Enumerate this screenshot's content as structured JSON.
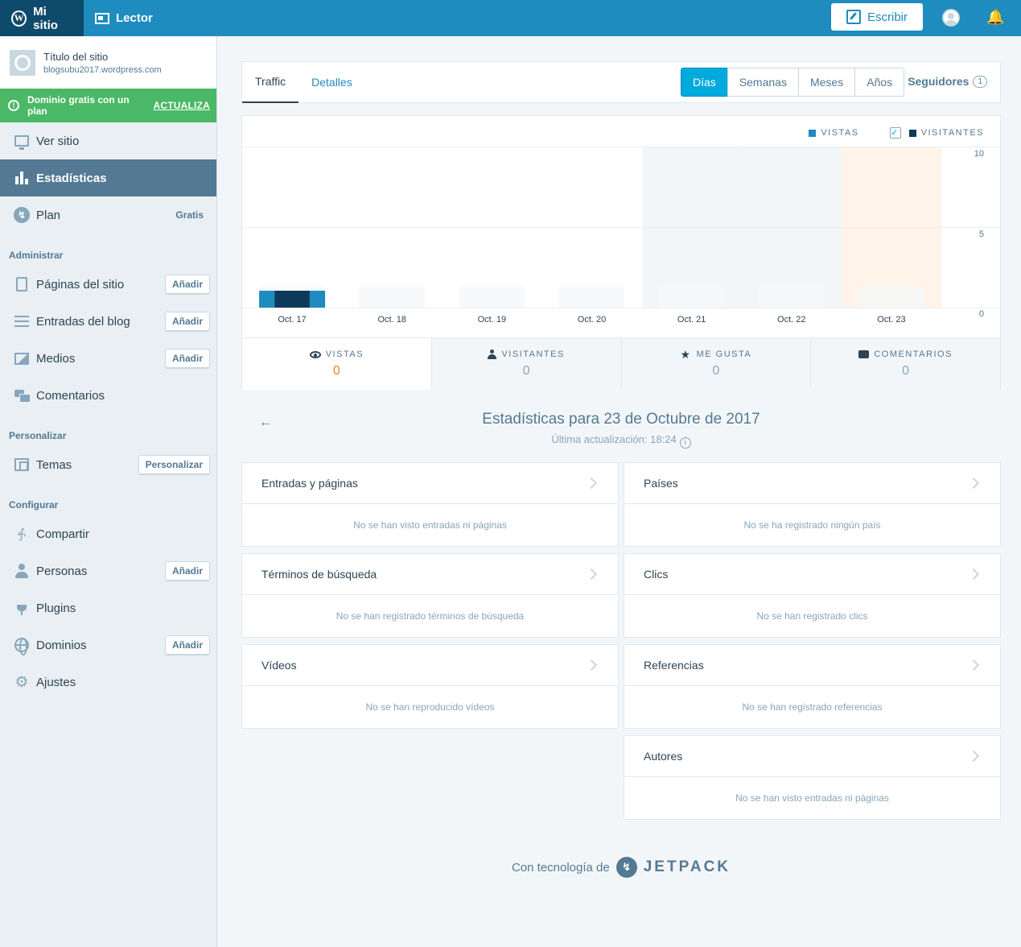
{
  "masterbar": {
    "my_sites": "Mi sitio",
    "reader": "Lector",
    "write": "Escribir"
  },
  "site": {
    "title": "Título del sitio",
    "domain": "blogsubu2017.wordpress.com"
  },
  "upsell": {
    "text": "Dominio gratis con un plan",
    "cta": "ACTUALIZA"
  },
  "sidebar": {
    "view_site": "Ver sitio",
    "stats": "Estadísticas",
    "plan": "Plan",
    "plan_badge": "Gratis",
    "section_manage": "Administrar",
    "pages": "Páginas del sitio",
    "pages_btn": "Añadir",
    "posts": "Entradas del blog",
    "posts_btn": "Añadir",
    "media": "Medios",
    "media_btn": "Añadir",
    "comments": "Comentarios",
    "section_personalize": "Personalizar",
    "themes": "Temas",
    "themes_btn": "Personalizar",
    "section_configure": "Configurar",
    "sharing": "Compartir",
    "people": "Personas",
    "people_btn": "Añadir",
    "plugins": "Plugins",
    "domains": "Dominios",
    "domains_btn": "Añadir",
    "settings": "Ajustes"
  },
  "tabs": {
    "traffic": "Traffic",
    "details": "Detalles"
  },
  "periods": {
    "days": "Días",
    "weeks": "Semanas",
    "months": "Meses",
    "years": "Años",
    "selected": "Días"
  },
  "followers": {
    "label": "Seguidores",
    "count": "1"
  },
  "legend": {
    "views": "VISTAS",
    "visitors": "VISITANTES",
    "visitors_checked": true
  },
  "colors": {
    "views": "#1e8cbe",
    "visitors": "#0e3a5a",
    "accent": "#00aadc",
    "highlight_value": "#f0821e",
    "upsell": "#4ab866"
  },
  "chart_data": {
    "type": "bar",
    "categories": [
      "Oct. 17",
      "Oct. 18",
      "Oct. 19",
      "Oct. 20",
      "Oct. 21",
      "Oct. 22",
      "Oct. 23"
    ],
    "series": [
      {
        "name": "VISTAS",
        "values": [
          1,
          0,
          0,
          0,
          0,
          0,
          0
        ]
      },
      {
        "name": "VISITANTES",
        "values": [
          1,
          0,
          0,
          0,
          0,
          0,
          0
        ]
      }
    ],
    "yticks": [
      "10",
      "5",
      "0"
    ],
    "ylim": [
      0,
      10
    ],
    "weekend_categories": [
      "Oct. 21",
      "Oct. 22"
    ],
    "selected_category": "Oct. 23",
    "grid": true
  },
  "stat_tabs": {
    "views_label": "VISTAS",
    "views_value": "0",
    "visitors_label": "VISITANTES",
    "visitors_value": "0",
    "likes_label": "ME GUSTA",
    "likes_value": "0",
    "comments_label": "COMENTARIOS",
    "comments_value": "0"
  },
  "date_header": {
    "title": "Estadísticas para 23 de Octubre de 2017",
    "updated": "Última actualización: 18:24"
  },
  "modules": {
    "posts": {
      "title": "Entradas y páginas",
      "empty": "No se han visto entradas ni páginas"
    },
    "countries": {
      "title": "Países",
      "empty": "No se ha registrado ningún país"
    },
    "search": {
      "title": "Términos de búsqueda",
      "empty": "No se han registrado términos de búsqueda"
    },
    "clicks": {
      "title": "Clics",
      "empty": "No se han registrado clics"
    },
    "videos": {
      "title": "Vídeos",
      "empty": "No se han reproducido vídeos"
    },
    "referrers": {
      "title": "Referencias",
      "empty": "No se han registrado referencias"
    },
    "authors": {
      "title": "Autores",
      "empty": "No se han visto entradas ni páginas"
    }
  },
  "footer": {
    "powered_by": "Con tecnología de",
    "brand": "JETPACK"
  }
}
